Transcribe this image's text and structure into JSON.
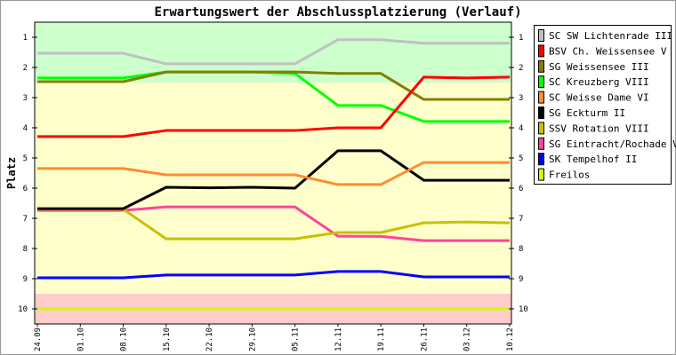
{
  "chart_data": {
    "type": "line",
    "title": "Erwartungswert der Abschlussplatzierung (Verlauf)",
    "xlabel": "",
    "ylabel": "Platz",
    "ylim": [
      0.5,
      10.5
    ],
    "y_inverted": true,
    "yticks": [
      1,
      2,
      3,
      4,
      5,
      6,
      7,
      8,
      9,
      10
    ],
    "categories": [
      "24.09",
      "01.10",
      "08.10",
      "15.10",
      "22.10",
      "29.10",
      "05.11",
      "12.11",
      "19.11",
      "26.11",
      "03.12",
      "10.12"
    ],
    "bands": [
      {
        "from": 0.5,
        "to": 2.5,
        "color": "#ccffcc"
      },
      {
        "from": 2.5,
        "to": 9.5,
        "color": "#ffffcc"
      },
      {
        "from": 9.5,
        "to": 10.5,
        "color": "#ffcccc"
      }
    ],
    "legend_position": "right",
    "series": [
      {
        "name": "SC SW Lichtenrade III",
        "color": "#c0c0c0",
        "values": [
          1.53,
          1.53,
          1.53,
          1.88,
          1.88,
          1.88,
          1.88,
          1.08,
          1.08,
          1.2,
          1.2,
          1.2
        ]
      },
      {
        "name": "BSV Ch. Weissensee V",
        "color": "#ff0000",
        "values": [
          4.29,
          4.29,
          4.29,
          4.09,
          4.09,
          4.09,
          4.09,
          4.0,
          4.0,
          2.32,
          2.35,
          2.32
        ]
      },
      {
        "name": "SG Weissensee III",
        "color": "#808000",
        "values": [
          2.47,
          2.47,
          2.47,
          2.15,
          2.15,
          2.15,
          2.15,
          2.2,
          2.2,
          3.06,
          3.06,
          3.06
        ]
      },
      {
        "name": "SC Kreuzberg VIII",
        "color": "#00ff00",
        "values": [
          2.35,
          2.35,
          2.35,
          2.15,
          2.15,
          2.15,
          2.2,
          3.26,
          3.26,
          3.79,
          3.79,
          3.79
        ]
      },
      {
        "name": "SC Weisse Dame VI",
        "color": "#ff8c30",
        "values": [
          5.35,
          5.35,
          5.35,
          5.56,
          5.56,
          5.56,
          5.56,
          5.88,
          5.88,
          5.15,
          5.15,
          5.15
        ]
      },
      {
        "name": "SG Eckturm II",
        "color": "#000000",
        "values": [
          6.68,
          6.68,
          6.68,
          5.97,
          5.99,
          5.97,
          6.0,
          4.76,
          4.76,
          5.74,
          5.74,
          5.74
        ]
      },
      {
        "name": "SSV Rotation VIII",
        "color": "#c8c000",
        "values": [
          6.7,
          6.7,
          6.7,
          7.68,
          7.68,
          7.68,
          7.68,
          7.47,
          7.47,
          7.15,
          7.12,
          7.15
        ]
      },
      {
        "name": "SG Eintracht/Rochade V",
        "color": "#ff4499",
        "values": [
          6.74,
          6.74,
          6.74,
          6.62,
          6.62,
          6.62,
          6.62,
          7.59,
          7.6,
          7.74,
          7.74,
          7.74
        ]
      },
      {
        "name": "SK Tempelhof II",
        "color": "#0000ff",
        "values": [
          8.97,
          8.97,
          8.97,
          8.88,
          8.88,
          8.88,
          8.88,
          8.76,
          8.76,
          8.94,
          8.94,
          8.94
        ]
      },
      {
        "name": "Freilos",
        "color": "#ccff00",
        "values": [
          10,
          10,
          10,
          10,
          10,
          10,
          10,
          10,
          10,
          10,
          10,
          10
        ]
      }
    ]
  }
}
